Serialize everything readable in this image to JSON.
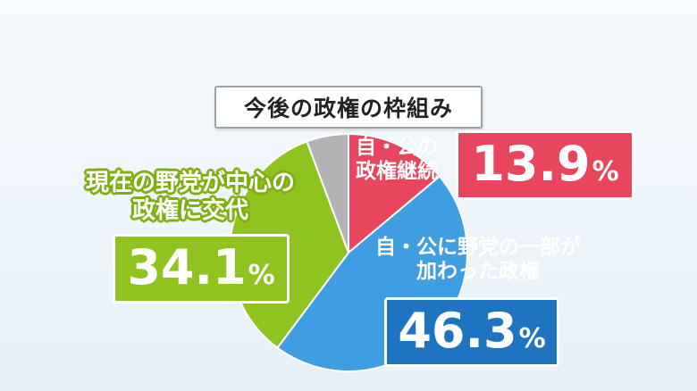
{
  "title": "今後の政権の枠組み",
  "chart_data": {
    "type": "pie",
    "title": "今後の政権の枠組み",
    "slices": [
      {
        "label": "自・公の政権継続",
        "value": 13.9,
        "color": "#e8455f",
        "value_text": "13.9"
      },
      {
        "label": "自・公に野党の一部が加わった政権",
        "value": 46.3,
        "color": "#3f9de0",
        "value_text": "46.3"
      },
      {
        "label": "現在の野党が中心の政権に交代",
        "value": 34.1,
        "color": "#8fc31f",
        "value_text": "34.1"
      },
      {
        "label": "",
        "value": 5.7,
        "color": "#b3b3b3"
      }
    ],
    "unit": "%"
  },
  "labels": {
    "red": [
      "自・公の",
      "政権継続"
    ],
    "blue": [
      "自・公に野党の一部が",
      "加わった政権"
    ],
    "green": [
      "現在の野党が中心の",
      "政権に交代"
    ]
  }
}
